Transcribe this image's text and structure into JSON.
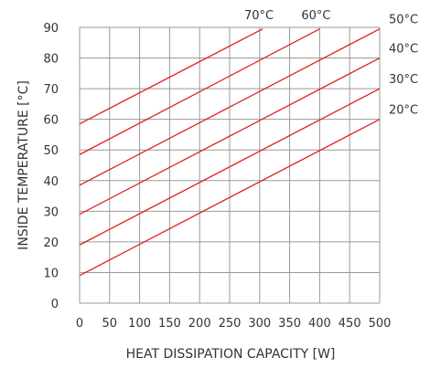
{
  "chart_data": {
    "type": "line",
    "title": "",
    "xlabel": "HEAT DISSIPATION CAPACITY [W]",
    "ylabel": "INSIDE TEMPERATURE [°C]",
    "xlim": [
      0,
      500
    ],
    "ylim": [
      0,
      90
    ],
    "xticks": [
      0,
      50,
      100,
      150,
      200,
      250,
      300,
      350,
      400,
      450,
      500
    ],
    "yticks": [
      0,
      10,
      20,
      30,
      40,
      50,
      60,
      70,
      80,
      90
    ],
    "grid": true,
    "line_color": "#e0201f",
    "series": [
      {
        "name": "20°C",
        "points": [
          [
            0,
            9
          ],
          [
            500,
            60
          ]
        ]
      },
      {
        "name": "30°C",
        "points": [
          [
            0,
            19
          ],
          [
            500,
            70
          ]
        ]
      },
      {
        "name": "40°C",
        "points": [
          [
            0,
            29
          ],
          [
            500,
            80
          ]
        ]
      },
      {
        "name": "50°C",
        "points": [
          [
            0,
            38.5
          ],
          [
            500,
            89.5
          ]
        ]
      },
      {
        "name": "60°C",
        "points": [
          [
            0,
            48.5
          ],
          [
            400,
            89.5
          ]
        ]
      },
      {
        "name": "70°C",
        "points": [
          [
            0,
            58.5
          ],
          [
            305,
            89.5
          ]
        ]
      }
    ]
  }
}
